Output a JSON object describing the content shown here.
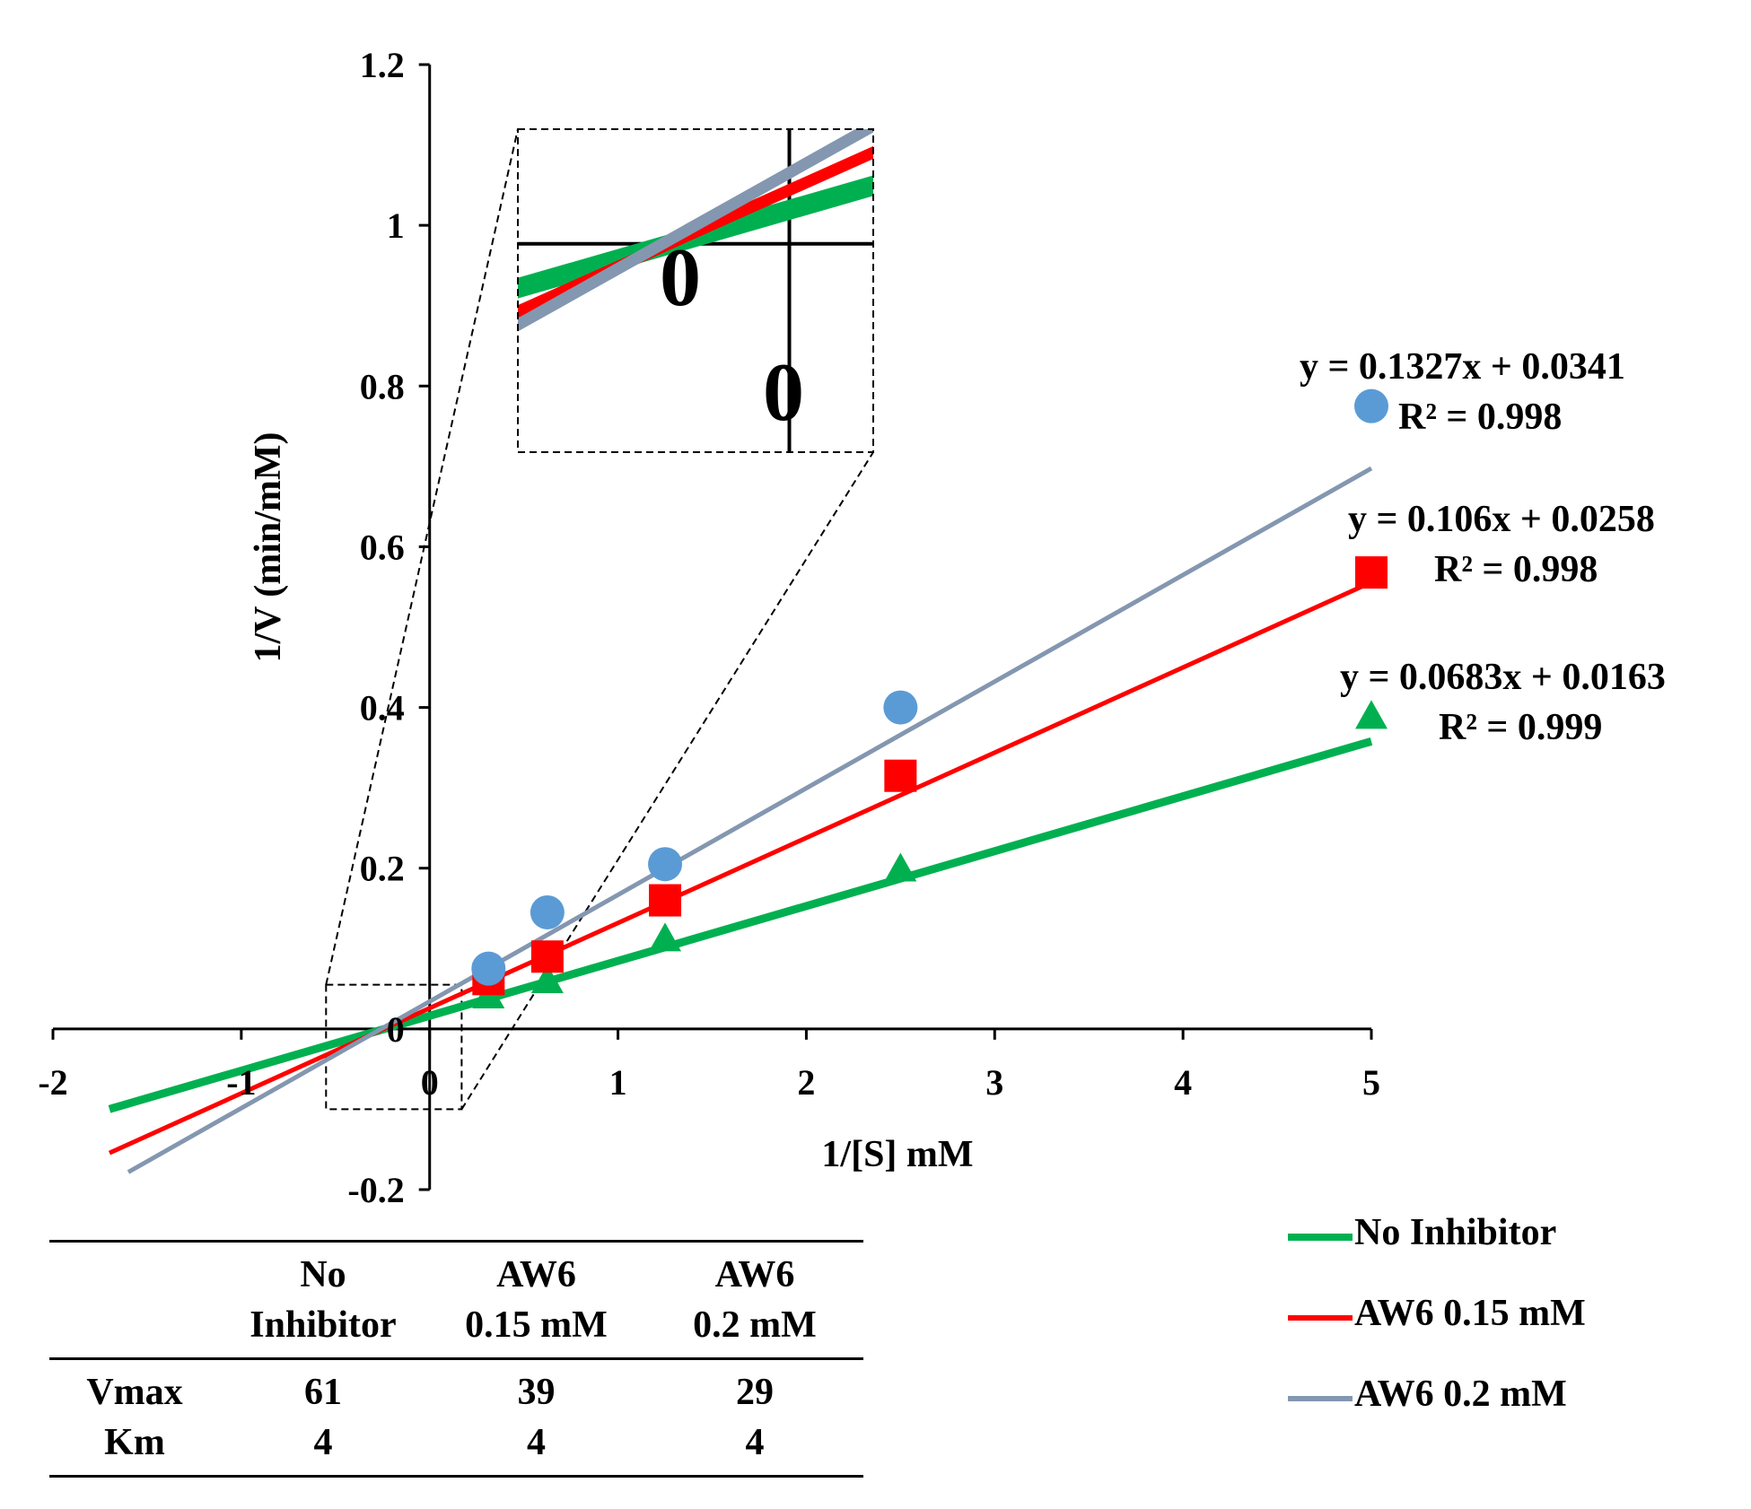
{
  "chart_data": {
    "type": "scatter",
    "xlabel": "1/[S] mM",
    "ylabel": "1/V (min/mM)",
    "xlim": [
      -2,
      5
    ],
    "ylim": [
      -0.2,
      1.2
    ],
    "x_ticks": [
      "-2",
      "-1",
      "0",
      "1",
      "2",
      "3",
      "4",
      "5"
    ],
    "y_ticks": [
      "-0.2",
      "0",
      "0.2",
      "0.4",
      "0.6",
      "0.8",
      "1",
      "1.2"
    ],
    "series": [
      {
        "name": "No Inhibitor",
        "color": "#00b050",
        "marker": "triangle",
        "x": [
          0.3125,
          0.625,
          1.25,
          2.5,
          5
        ],
        "y": [
          0.04,
          0.059,
          0.111,
          0.198,
          0.388
        ],
        "trendline": {
          "slope": 0.0683,
          "intercept": 0.0163,
          "x_from": -1.7,
          "x_to": 5
        },
        "equation": "y = 0.0683x + 0.0163",
        "r2": "R² = 0.999"
      },
      {
        "name": "AW6 0.15 mM",
        "color": "#ff0000",
        "marker": "square",
        "x": [
          0.3125,
          0.625,
          1.25,
          2.5,
          5
        ],
        "y": [
          0.062,
          0.09,
          0.16,
          0.315,
          0.568
        ],
        "trendline": {
          "slope": 0.106,
          "intercept": 0.0258,
          "x_from": -1.7,
          "x_to": 5
        },
        "equation": "y = 0.106x + 0.0258",
        "r2": "R² = 0.998"
      },
      {
        "name": "AW6 0.2 mM",
        "color": "#8497b0",
        "marker": "circle",
        "point_color": "#5b9bd5",
        "x": [
          0.3125,
          0.625,
          1.25,
          2.5,
          5
        ],
        "y": [
          0.075,
          0.145,
          0.205,
          0.4,
          0.775
        ],
        "trendline": {
          "slope": 0.1327,
          "intercept": 0.0341,
          "x_from": -1.6,
          "x_to": 5
        },
        "equation": "y = 0.1327x + 0.0341",
        "r2": "R² = 0.998"
      }
    ],
    "inset": {
      "zoom_xlim": [
        -0.55,
        0.17
      ],
      "zoom_ylim": [
        -0.1,
        0.055
      ],
      "labels": [
        "0",
        "0"
      ]
    }
  },
  "table": {
    "headers": [
      [
        "",
        ""
      ],
      [
        "No",
        "Inhibitor"
      ],
      [
        "AW6",
        "0.15 mM"
      ],
      [
        "AW6",
        "0.2 mM"
      ]
    ],
    "rows": [
      {
        "label": "Vmax",
        "values": [
          "61",
          "39",
          "29"
        ]
      },
      {
        "label": "Km",
        "values": [
          "4",
          "4",
          "4"
        ]
      }
    ]
  }
}
